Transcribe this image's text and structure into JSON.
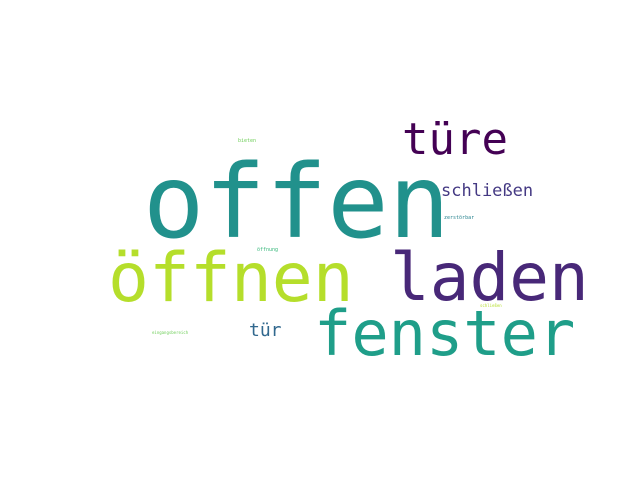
{
  "wordcloud": {
    "words": [
      {
        "id": "offen",
        "text": "offen",
        "color": "#21918c"
      },
      {
        "id": "oeffnen",
        "text": "öffnen",
        "color": "#b5de2b"
      },
      {
        "id": "laden",
        "text": "laden",
        "color": "#482878"
      },
      {
        "id": "fenster",
        "text": "fenster",
        "color": "#1f9e89"
      },
      {
        "id": "tuere",
        "text": "türe",
        "color": "#440154"
      },
      {
        "id": "schliessen",
        "text": "schließen",
        "color": "#443983"
      },
      {
        "id": "tuer",
        "text": "tür",
        "color": "#31688e"
      },
      {
        "id": "bieten",
        "text": "bieten",
        "color": "#6ece58"
      },
      {
        "id": "zerstoerbar",
        "text": "zerstörbar",
        "color": "#26828e"
      },
      {
        "id": "oeffnung",
        "text": "öffnung",
        "color": "#35b779"
      },
      {
        "id": "schliessen_small",
        "text": "schließen",
        "color": "#b5de2b"
      },
      {
        "id": "eingang",
        "text": "eingangsbereich",
        "color": "#6ece58"
      }
    ]
  }
}
